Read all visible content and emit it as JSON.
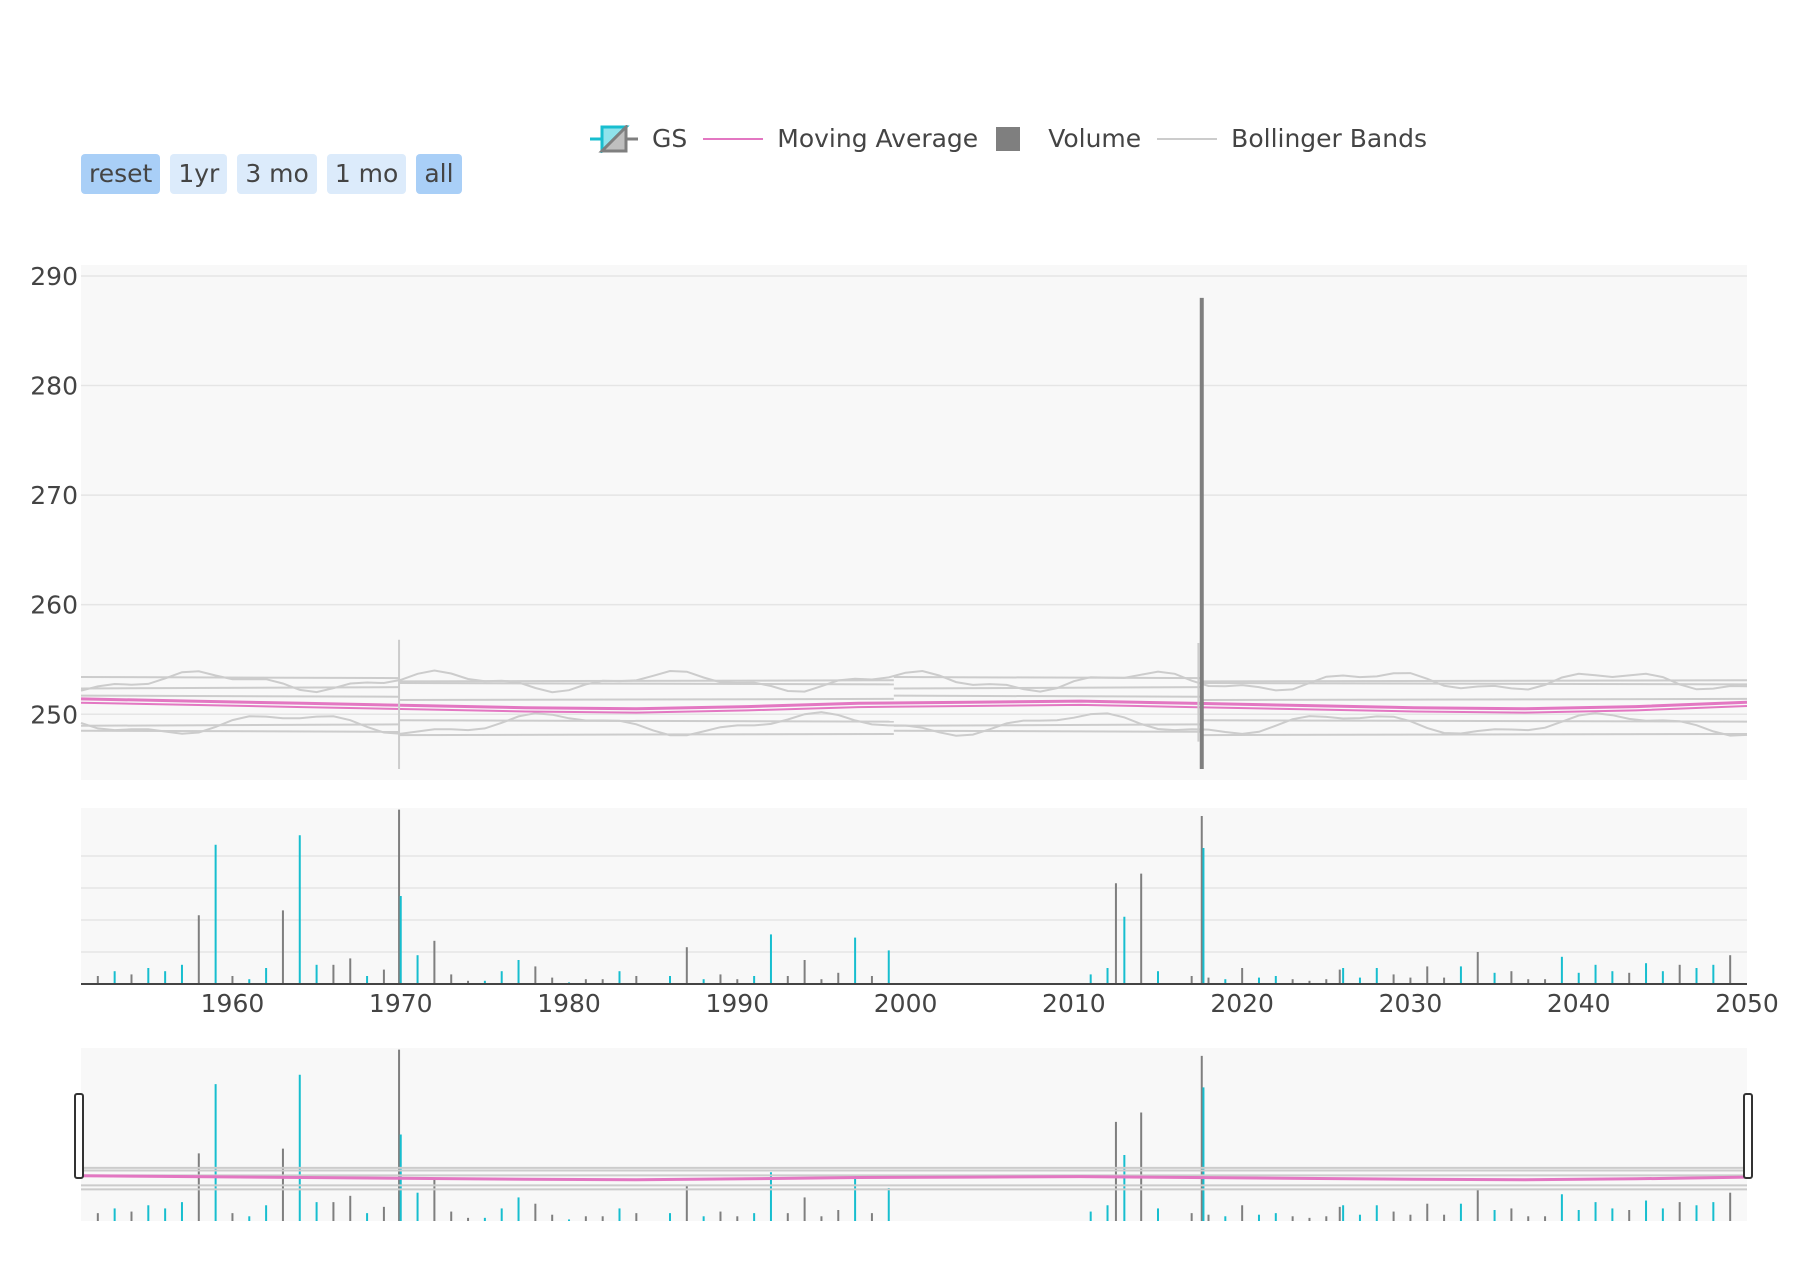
{
  "range_buttons": [
    {
      "label": "reset",
      "active": true
    },
    {
      "label": "1yr",
      "active": false
    },
    {
      "label": "3 mo",
      "active": false
    },
    {
      "label": "1 mo",
      "active": false
    },
    {
      "label": "all",
      "active": true
    }
  ],
  "legend": {
    "gs": "GS",
    "ma": "Moving Average",
    "volume": "Volume",
    "bb": "Bollinger Bands"
  },
  "colors": {
    "increasing": "#17becf",
    "decreasing": "#7f7f7f",
    "moving_average": "#e377c2",
    "bands": "#cccccc",
    "plot_bg": "#f8f8f8",
    "grid": "#e5e5e5",
    "button": "#dcebfb",
    "button_active": "#a9cff7"
  },
  "chart_data": {
    "type": "candlestick",
    "xlim": [
      1951,
      2050
    ],
    "x_ticks": [
      "1960",
      "1970",
      "1980",
      "1990",
      "2000",
      "2010",
      "2020",
      "2030",
      "2040",
      "2050"
    ],
    "price_axis": {
      "ylim": [
        244,
        291
      ],
      "ticks": [
        "250",
        "260",
        "270",
        "280",
        "290"
      ],
      "grid": true
    },
    "price_spikes": [
      {
        "x": 1969.9,
        "low": 245,
        "high": 256.8
      },
      {
        "x": 2017.6,
        "low": 245,
        "high": 288
      },
      {
        "x": 2017.4,
        "low": 247.5,
        "high": 256.5
      }
    ],
    "band_levels": [
      253.2,
      252.6,
      251.5,
      249.2,
      248.3
    ],
    "moving_average": [
      251.4,
      251.2,
      251,
      250.8,
      250.6,
      250.5,
      250.7,
      251,
      251.1,
      251.2,
      251,
      250.8,
      250.6,
      250.5,
      250.7,
      251.1
    ],
    "volume_axis": {
      "ylim": [
        0,
        110
      ],
      "grid": true
    },
    "volume": [
      {
        "x": 1952,
        "v": 5,
        "up": false
      },
      {
        "x": 1953,
        "v": 8,
        "up": true
      },
      {
        "x": 1954,
        "v": 6,
        "up": false
      },
      {
        "x": 1955,
        "v": 10,
        "up": true
      },
      {
        "x": 1956,
        "v": 8,
        "up": true
      },
      {
        "x": 1957,
        "v": 12,
        "up": true
      },
      {
        "x": 1958,
        "v": 43,
        "up": false
      },
      {
        "x": 1959,
        "v": 87,
        "up": true
      },
      {
        "x": 1960,
        "v": 5,
        "up": false
      },
      {
        "x": 1961,
        "v": 3,
        "up": true
      },
      {
        "x": 1962,
        "v": 10,
        "up": true
      },
      {
        "x": 1963,
        "v": 46,
        "up": false
      },
      {
        "x": 1964,
        "v": 93,
        "up": true
      },
      {
        "x": 1965,
        "v": 12,
        "up": true
      },
      {
        "x": 1966,
        "v": 12,
        "up": false
      },
      {
        "x": 1967,
        "v": 16,
        "up": false
      },
      {
        "x": 1968,
        "v": 5,
        "up": true
      },
      {
        "x": 1969,
        "v": 9,
        "up": false
      },
      {
        "x": 1969.9,
        "v": 109,
        "up": false
      },
      {
        "x": 1970,
        "v": 55,
        "up": true
      },
      {
        "x": 1971,
        "v": 18,
        "up": true
      },
      {
        "x": 1972,
        "v": 27,
        "up": false
      },
      {
        "x": 1973,
        "v": 6,
        "up": false
      },
      {
        "x": 1974,
        "v": 2,
        "up": false
      },
      {
        "x": 1975,
        "v": 2,
        "up": true
      },
      {
        "x": 1976,
        "v": 8,
        "up": true
      },
      {
        "x": 1977,
        "v": 15,
        "up": true
      },
      {
        "x": 1978,
        "v": 11,
        "up": false
      },
      {
        "x": 1979,
        "v": 4,
        "up": false
      },
      {
        "x": 1980,
        "v": 1,
        "up": true
      },
      {
        "x": 1981,
        "v": 3,
        "up": false
      },
      {
        "x": 1982,
        "v": 3,
        "up": false
      },
      {
        "x": 1983,
        "v": 8,
        "up": true
      },
      {
        "x": 1984,
        "v": 5,
        "up": false
      },
      {
        "x": 1986,
        "v": 5,
        "up": true
      },
      {
        "x": 1987,
        "v": 23,
        "up": false
      },
      {
        "x": 1988,
        "v": 3,
        "up": true
      },
      {
        "x": 1989,
        "v": 6,
        "up": false
      },
      {
        "x": 1990,
        "v": 3,
        "up": false
      },
      {
        "x": 1991,
        "v": 5,
        "up": true
      },
      {
        "x": 1992,
        "v": 31,
        "up": true
      },
      {
        "x": 1993,
        "v": 5,
        "up": false
      },
      {
        "x": 1994,
        "v": 15,
        "up": false
      },
      {
        "x": 1995,
        "v": 3,
        "up": false
      },
      {
        "x": 1996,
        "v": 7,
        "up": false
      },
      {
        "x": 1997,
        "v": 29,
        "up": true
      },
      {
        "x": 1998,
        "v": 5,
        "up": false
      },
      {
        "x": 1999,
        "v": 21,
        "up": true
      },
      {
        "x": 2011,
        "v": 6,
        "up": true
      },
      {
        "x": 2012,
        "v": 10,
        "up": true
      },
      {
        "x": 2012.5,
        "v": 63,
        "up": false
      },
      {
        "x": 2013,
        "v": 42,
        "up": true
      },
      {
        "x": 2014,
        "v": 69,
        "up": false
      },
      {
        "x": 2015,
        "v": 8,
        "up": true
      },
      {
        "x": 2017,
        "v": 5,
        "up": false
      },
      {
        "x": 2017.6,
        "v": 105,
        "up": false
      },
      {
        "x": 2017.7,
        "v": 85,
        "up": true
      },
      {
        "x": 2018,
        "v": 4,
        "up": false
      },
      {
        "x": 2019,
        "v": 3,
        "up": true
      },
      {
        "x": 2020,
        "v": 10,
        "up": false
      },
      {
        "x": 2021,
        "v": 4,
        "up": true
      },
      {
        "x": 2022,
        "v": 5,
        "up": true
      },
      {
        "x": 2023,
        "v": 3,
        "up": false
      },
      {
        "x": 2024,
        "v": 2,
        "up": false
      },
      {
        "x": 2025,
        "v": 3,
        "up": false
      },
      {
        "x": 2025.8,
        "v": 9,
        "up": false
      },
      {
        "x": 2026,
        "v": 10,
        "up": true
      },
      {
        "x": 2027,
        "v": 4,
        "up": true
      },
      {
        "x": 2028,
        "v": 10,
        "up": true
      },
      {
        "x": 2029,
        "v": 6,
        "up": false
      },
      {
        "x": 2030,
        "v": 4,
        "up": false
      },
      {
        "x": 2031,
        "v": 11,
        "up": false
      },
      {
        "x": 2032,
        "v": 4,
        "up": false
      },
      {
        "x": 2033,
        "v": 11,
        "up": true
      },
      {
        "x": 2034,
        "v": 20,
        "up": false
      },
      {
        "x": 2035,
        "v": 7,
        "up": true
      },
      {
        "x": 2036,
        "v": 8,
        "up": false
      },
      {
        "x": 2037,
        "v": 3,
        "up": false
      },
      {
        "x": 2038,
        "v": 3,
        "up": false
      },
      {
        "x": 2039,
        "v": 17,
        "up": true
      },
      {
        "x": 2040,
        "v": 7,
        "up": true
      },
      {
        "x": 2041,
        "v": 12,
        "up": true
      },
      {
        "x": 2042,
        "v": 8,
        "up": true
      },
      {
        "x": 2043,
        "v": 7,
        "up": false
      },
      {
        "x": 2044,
        "v": 13,
        "up": true
      },
      {
        "x": 2045,
        "v": 8,
        "up": true
      },
      {
        "x": 2046,
        "v": 12,
        "up": false
      },
      {
        "x": 2047,
        "v": 10,
        "up": true
      },
      {
        "x": 2048,
        "v": 12,
        "up": true
      },
      {
        "x": 2049,
        "v": 18,
        "up": false
      }
    ]
  }
}
